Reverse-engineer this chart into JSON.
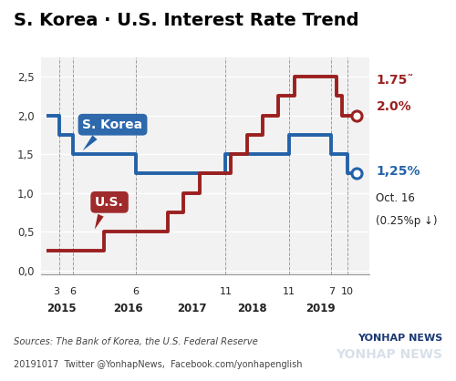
{
  "title": "S. Korea · U.S. Interest Rate Trend",
  "korea_steps": [
    [
      2015.0,
      2.0
    ],
    [
      2015.208,
      1.75
    ],
    [
      2015.417,
      1.5
    ],
    [
      2016.417,
      1.25
    ],
    [
      2017.833,
      1.5
    ],
    [
      2018.833,
      1.75
    ],
    [
      2019.5,
      1.5
    ],
    [
      2019.75,
      1.25
    ]
  ],
  "us_steps": [
    [
      2015.0,
      0.25
    ],
    [
      2015.917,
      0.5
    ],
    [
      2016.917,
      0.75
    ],
    [
      2017.167,
      1.0
    ],
    [
      2017.417,
      1.25
    ],
    [
      2017.917,
      1.5
    ],
    [
      2018.167,
      1.75
    ],
    [
      2018.417,
      2.0
    ],
    [
      2018.667,
      2.25
    ],
    [
      2018.917,
      2.5
    ],
    [
      2019.583,
      2.25
    ],
    [
      2019.667,
      2.0
    ]
  ],
  "vline_positions": [
    2015.208,
    2015.417,
    2016.417,
    2017.833,
    2018.833,
    2019.5,
    2019.75
  ],
  "yticks": [
    0.0,
    0.5,
    1.0,
    1.5,
    2.0,
    2.5
  ],
  "ylabels": [
    "0,0",
    "0,5",
    "1,0",
    "1,5",
    "2,0",
    "2,5"
  ],
  "xlim": [
    2014.92,
    2020.1
  ],
  "ylim": [
    -0.05,
    2.75
  ],
  "korea_color": "#2362a8",
  "us_color": "#9b2020",
  "bg_color": "#f2f2f2",
  "source_text": "Sources: The Bank of Korea, the U.S. Federal Reserve",
  "footer_text": "20191017  Twitter @YonhapNews,  Facebook.com/yonhapenglish",
  "annotation_korea_pct": "1,25%",
  "annotation_korea_date": "Oct. 16",
  "annotation_korea_change": "(0.25%p ↓)",
  "annotation_us1": "1.75˜",
  "annotation_us2": "2.0%",
  "label_korea": "S. Korea",
  "label_us": "U.S.",
  "xtick_months": [
    [
      "3",
      2015.167
    ],
    [
      "6",
      2015.417
    ],
    [
      "6",
      2016.417
    ],
    [
      "11",
      2017.833
    ],
    [
      "11",
      2018.833
    ],
    [
      "7",
      2019.5
    ],
    [
      "10",
      2019.75
    ]
  ],
  "year_labels": [
    [
      "2015",
      2015.25
    ],
    [
      "2016",
      2016.3
    ],
    [
      "2017",
      2017.3
    ],
    [
      "2018",
      2018.25
    ],
    [
      "2019",
      2019.33
    ]
  ],
  "end_x": 2019.9
}
